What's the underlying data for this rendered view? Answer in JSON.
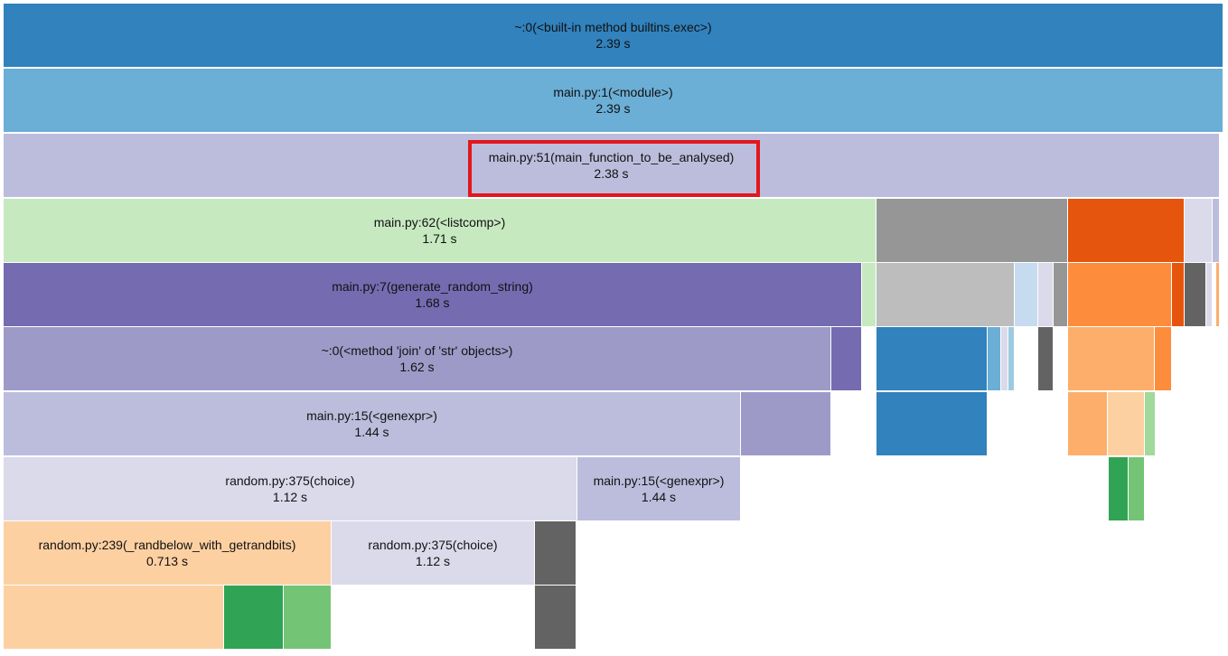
{
  "profile": {
    "blocks": [
      {
        "fn": "~:0(<built-in method builtins.exec>)",
        "time": "2.39 s",
        "color": "#3182bd"
      },
      {
        "fn": "main.py:1(<module>)",
        "time": "2.39 s",
        "color": "#6baed6"
      },
      {
        "fn": "main.py:51(main_function_to_be_analysed)",
        "time": "2.38 s",
        "color": "#bcbddc"
      },
      {
        "fn": "main.py:62(<listcomp>)",
        "time": "1.71 s",
        "color": "#c7e9c0"
      },
      {
        "fn": "",
        "time": "",
        "color": "#969696"
      },
      {
        "fn": "",
        "time": "",
        "color": "#e6550d"
      },
      {
        "fn": "",
        "time": "",
        "color": "#dadaeb"
      },
      {
        "fn": "",
        "time": "",
        "color": "#bcbddc"
      },
      {
        "fn": "main.py:7(generate_random_string)",
        "time": "1.68 s",
        "color": "#756bb1"
      },
      {
        "fn": "",
        "time": "",
        "color": "#c7e9c0"
      },
      {
        "fn": "",
        "time": "",
        "color": "#bdbdbd"
      },
      {
        "fn": "",
        "time": "",
        "color": "#c6dbef"
      },
      {
        "fn": "",
        "time": "",
        "color": "#dadaeb"
      },
      {
        "fn": "",
        "time": "",
        "color": "#969696"
      },
      {
        "fn": "",
        "time": "",
        "color": "#fd8d3c"
      },
      {
        "fn": "",
        "time": "",
        "color": "#e6550d"
      },
      {
        "fn": "",
        "time": "",
        "color": "#636363"
      },
      {
        "fn": "",
        "time": "",
        "color": "#dadaeb"
      },
      {
        "fn": "",
        "time": "",
        "color": "#fdae6b"
      },
      {
        "fn": "~:0(<method 'join' of 'str' objects>)",
        "time": "1.62 s",
        "color": "#9e9ac8"
      },
      {
        "fn": "",
        "time": "",
        "color": "#756bb1"
      },
      {
        "fn": "",
        "time": "",
        "color": "#3182bd"
      },
      {
        "fn": "",
        "time": "",
        "color": "#6baed6"
      },
      {
        "fn": "",
        "time": "",
        "color": "#dadaeb"
      },
      {
        "fn": "",
        "time": "",
        "color": "#9ecae1"
      },
      {
        "fn": "",
        "time": "",
        "color": "#636363"
      },
      {
        "fn": "",
        "time": "",
        "color": "#fdae6b"
      },
      {
        "fn": "",
        "time": "",
        "color": "#fd8d3c"
      },
      {
        "fn": "main.py:15(<genexpr>)",
        "time": "1.44 s",
        "color": "#bcbddc"
      },
      {
        "fn": "",
        "time": "",
        "color": "#9e9ac8"
      },
      {
        "fn": "",
        "time": "",
        "color": "#3182bd"
      },
      {
        "fn": "",
        "time": "",
        "color": "#fdae6b"
      },
      {
        "fn": "",
        "time": "",
        "color": "#fdd0a2"
      },
      {
        "fn": "",
        "time": "",
        "color": "#a1d99b"
      },
      {
        "fn": "random.py:375(choice)",
        "time": "1.12 s",
        "color": "#dadaeb"
      },
      {
        "fn": "main.py:15(<genexpr>)",
        "time": "1.44 s",
        "color": "#bcbddc"
      },
      {
        "fn": "",
        "time": "",
        "color": "#31a354"
      },
      {
        "fn": "",
        "time": "",
        "color": "#74c476"
      },
      {
        "fn": "random.py:239(_randbelow_with_getrandbits)",
        "time": "0.713 s",
        "color": "#fdd0a2"
      },
      {
        "fn": "random.py:375(choice)",
        "time": "1.12 s",
        "color": "#dadaeb"
      },
      {
        "fn": "",
        "time": "",
        "color": "#636363"
      },
      {
        "fn": "",
        "time": "",
        "color": "#fdd0a2"
      },
      {
        "fn": "",
        "time": "",
        "color": "#31a354"
      },
      {
        "fn": "",
        "time": "",
        "color": "#74c476"
      },
      {
        "fn": "",
        "time": "",
        "color": "#636363"
      }
    ]
  }
}
